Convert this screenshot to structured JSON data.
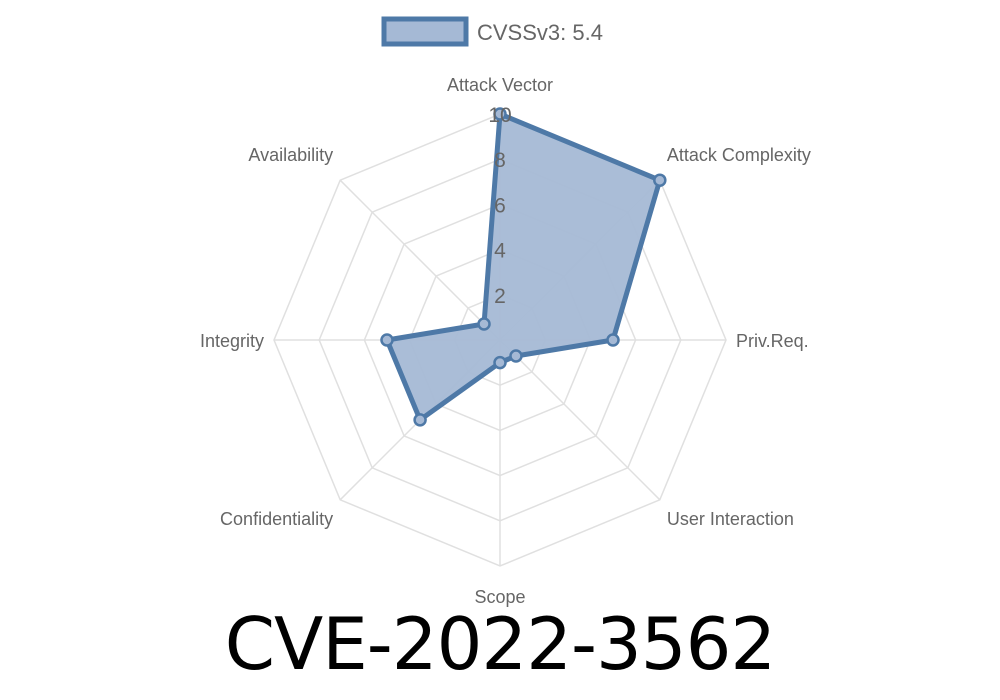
{
  "chart_data": {
    "type": "radar",
    "title": "CVE-2022-3562",
    "axes": [
      "Attack Vector",
      "Attack Complexity",
      "Priv.Req.",
      "User Interaction",
      "Scope",
      "Confidentiality",
      "Integrity",
      "Availability"
    ],
    "series": [
      {
        "name": "CVSSv3: 5.4",
        "values": [
          10,
          10,
          5,
          1,
          1,
          5,
          5,
          1
        ]
      }
    ],
    "rlim": [
      0,
      10
    ],
    "ticks": [
      "2",
      "4",
      "6",
      "8",
      "10"
    ],
    "grid": true,
    "legend": "top",
    "colors": {
      "line": "#4e79a7",
      "fill": "#a5b9d5",
      "grid": "#e0e0e0",
      "text": "#666666"
    }
  }
}
